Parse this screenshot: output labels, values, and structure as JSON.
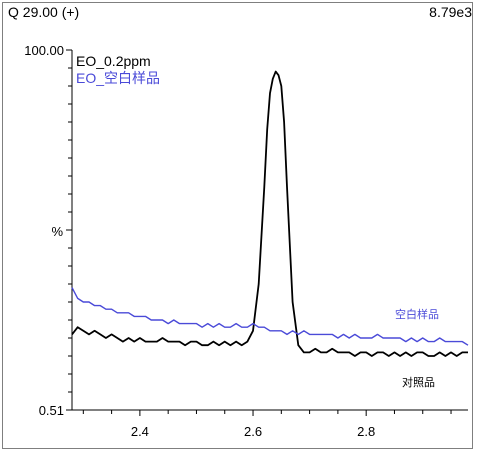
{
  "header": {
    "left_text": "Q 29.00 (+)",
    "right_text": "8.79e3"
  },
  "chart_data": {
    "type": "line",
    "title": "",
    "xlabel": "",
    "ylabel": "%",
    "xlim": [
      2.28,
      2.98
    ],
    "ylim": [
      0,
      100
    ],
    "y_tick_labels": [
      "100.00",
      "0.51"
    ],
    "x_ticks": [
      2.4,
      2.6,
      2.8
    ],
    "x_tick_labels": [
      "2.4",
      "2.6",
      "2.8"
    ],
    "grid": false,
    "legend": "top-left",
    "series": [
      {
        "name": "EO_0.2ppm",
        "color": "#000000",
        "annotation": "对照品",
        "x": [
          2.28,
          2.29,
          2.3,
          2.31,
          2.32,
          2.33,
          2.34,
          2.35,
          2.36,
          2.37,
          2.38,
          2.39,
          2.4,
          2.41,
          2.42,
          2.43,
          2.44,
          2.45,
          2.46,
          2.47,
          2.48,
          2.49,
          2.5,
          2.51,
          2.52,
          2.53,
          2.54,
          2.55,
          2.56,
          2.57,
          2.58,
          2.59,
          2.6,
          2.61,
          2.62,
          2.625,
          2.63,
          2.635,
          2.64,
          2.645,
          2.65,
          2.655,
          2.66,
          2.67,
          2.68,
          2.69,
          2.7,
          2.71,
          2.72,
          2.73,
          2.74,
          2.75,
          2.76,
          2.77,
          2.78,
          2.79,
          2.8,
          2.81,
          2.82,
          2.83,
          2.84,
          2.85,
          2.86,
          2.87,
          2.88,
          2.89,
          2.9,
          2.91,
          2.92,
          2.93,
          2.94,
          2.95,
          2.96,
          2.97,
          2.98
        ],
        "y": [
          21,
          23,
          22,
          21,
          22,
          21,
          20,
          21,
          20,
          19,
          20,
          19,
          20,
          19,
          19,
          19,
          20,
          19,
          19,
          19,
          18,
          19,
          19,
          18,
          18,
          19,
          18,
          19,
          18,
          19,
          18,
          19,
          22,
          35,
          62,
          78,
          88,
          92,
          94,
          93,
          90,
          80,
          62,
          30,
          18,
          16,
          16,
          17,
          16,
          16,
          17,
          16,
          16,
          16,
          15,
          16,
          16,
          15,
          16,
          16,
          15,
          16,
          15,
          16,
          15,
          16,
          16,
          15,
          15,
          16,
          15,
          16,
          15,
          16,
          16
        ]
      },
      {
        "name": "EO_空白样品",
        "color": "#4a4ad8",
        "annotation": "空白样品",
        "x": [
          2.28,
          2.29,
          2.3,
          2.31,
          2.32,
          2.33,
          2.34,
          2.35,
          2.36,
          2.37,
          2.38,
          2.39,
          2.4,
          2.41,
          2.42,
          2.43,
          2.44,
          2.45,
          2.46,
          2.47,
          2.48,
          2.49,
          2.5,
          2.51,
          2.52,
          2.53,
          2.54,
          2.55,
          2.56,
          2.57,
          2.58,
          2.59,
          2.6,
          2.61,
          2.62,
          2.63,
          2.64,
          2.65,
          2.66,
          2.67,
          2.68,
          2.69,
          2.7,
          2.71,
          2.72,
          2.73,
          2.74,
          2.75,
          2.76,
          2.77,
          2.78,
          2.79,
          2.8,
          2.81,
          2.82,
          2.83,
          2.84,
          2.85,
          2.86,
          2.87,
          2.88,
          2.89,
          2.9,
          2.91,
          2.92,
          2.93,
          2.94,
          2.95,
          2.96,
          2.97,
          2.98
        ],
        "y": [
          34,
          31,
          30,
          30,
          29,
          29,
          28,
          28,
          27,
          27,
          27,
          26,
          26,
          26,
          25,
          25,
          25,
          24,
          25,
          24,
          24,
          24,
          24,
          23,
          24,
          23,
          24,
          23,
          23,
          24,
          23,
          23,
          24,
          23,
          23,
          22,
          22,
          22,
          21,
          22,
          21,
          22,
          21,
          21,
          21,
          21,
          21,
          20,
          21,
          20,
          21,
          20,
          20,
          20,
          21,
          20,
          20,
          20,
          20,
          19,
          20,
          19,
          20,
          19,
          19,
          20,
          19,
          19,
          19,
          19,
          18
        ]
      }
    ]
  }
}
